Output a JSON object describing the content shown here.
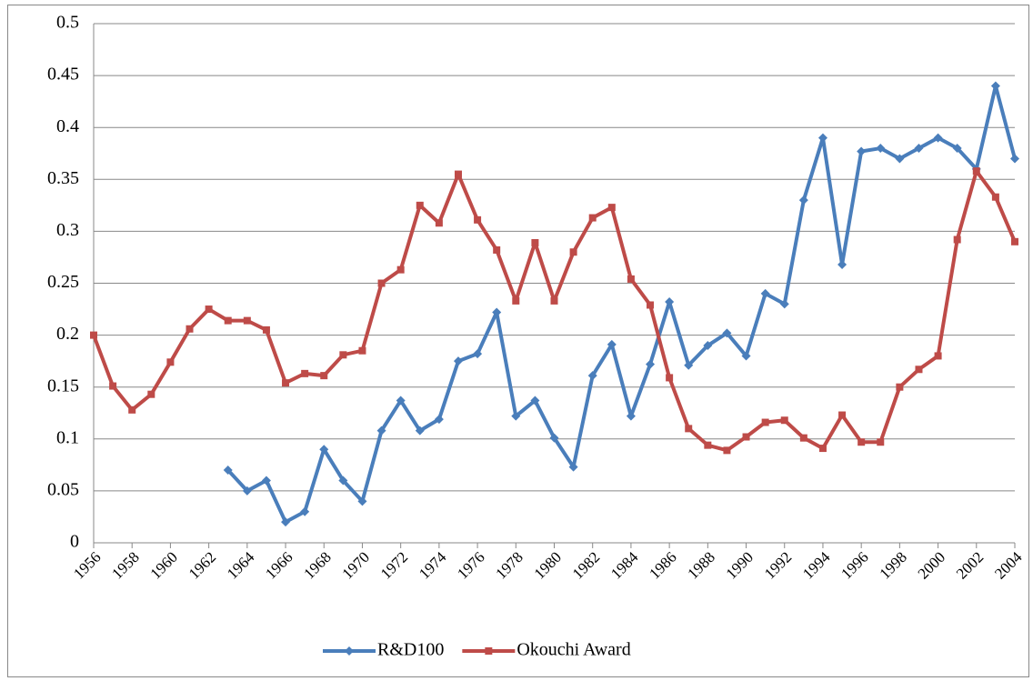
{
  "chart_data": {
    "type": "line",
    "x": [
      1956,
      1957,
      1958,
      1959,
      1960,
      1961,
      1962,
      1963,
      1964,
      1965,
      1966,
      1967,
      1968,
      1969,
      1970,
      1971,
      1972,
      1973,
      1974,
      1975,
      1976,
      1977,
      1978,
      1979,
      1980,
      1981,
      1982,
      1983,
      1984,
      1985,
      1986,
      1987,
      1988,
      1989,
      1990,
      1991,
      1992,
      1993,
      1994,
      1995,
      1996,
      1997,
      1998,
      1999,
      2000,
      2001,
      2002,
      2003,
      2004
    ],
    "series": [
      {
        "name": "R&D100",
        "color": "#4a7ebb",
        "marker": "diamond",
        "values": [
          null,
          null,
          null,
          null,
          null,
          null,
          null,
          0.07,
          0.05,
          0.06,
          0.02,
          0.03,
          0.09,
          0.06,
          0.04,
          0.108,
          0.137,
          0.108,
          0.119,
          0.175,
          0.182,
          0.222,
          0.122,
          0.137,
          0.101,
          0.073,
          0.161,
          0.191,
          0.122,
          0.172,
          0.232,
          0.171,
          0.19,
          0.202,
          0.18,
          0.24,
          0.23,
          0.33,
          0.39,
          0.268,
          0.377,
          0.38,
          0.37,
          0.38,
          0.39,
          0.38,
          0.36,
          0.44,
          0.37
        ]
      },
      {
        "name": "Okouchi Award",
        "color": "#be4b48",
        "marker": "square",
        "values": [
          0.2,
          0.151,
          0.128,
          0.143,
          0.174,
          0.206,
          0.225,
          0.214,
          0.214,
          0.205,
          0.154,
          0.163,
          0.161,
          0.181,
          0.185,
          0.25,
          0.263,
          0.325,
          0.308,
          0.355,
          0.311,
          0.282,
          0.233,
          0.289,
          0.233,
          0.28,
          0.313,
          0.323,
          0.254,
          0.229,
          0.159,
          0.11,
          0.094,
          0.089,
          0.102,
          0.116,
          0.118,
          0.101,
          0.091,
          0.123,
          0.097,
          0.097,
          0.15,
          0.167,
          0.18,
          0.292,
          0.358,
          0.333,
          0.29
        ]
      }
    ],
    "xlim": [
      1956,
      2004
    ],
    "xticks": [
      1956,
      1958,
      1960,
      1962,
      1964,
      1966,
      1968,
      1970,
      1972,
      1974,
      1976,
      1978,
      1980,
      1982,
      1984,
      1986,
      1988,
      1990,
      1992,
      1994,
      1996,
      1998,
      2000,
      2002,
      2004
    ],
    "ylim": [
      0,
      0.5
    ],
    "yticks": [
      0,
      0.05,
      0.1,
      0.15,
      0.2,
      0.25,
      0.3,
      0.35,
      0.4,
      0.45,
      0.5
    ],
    "grid": true,
    "legend": "bottom"
  }
}
